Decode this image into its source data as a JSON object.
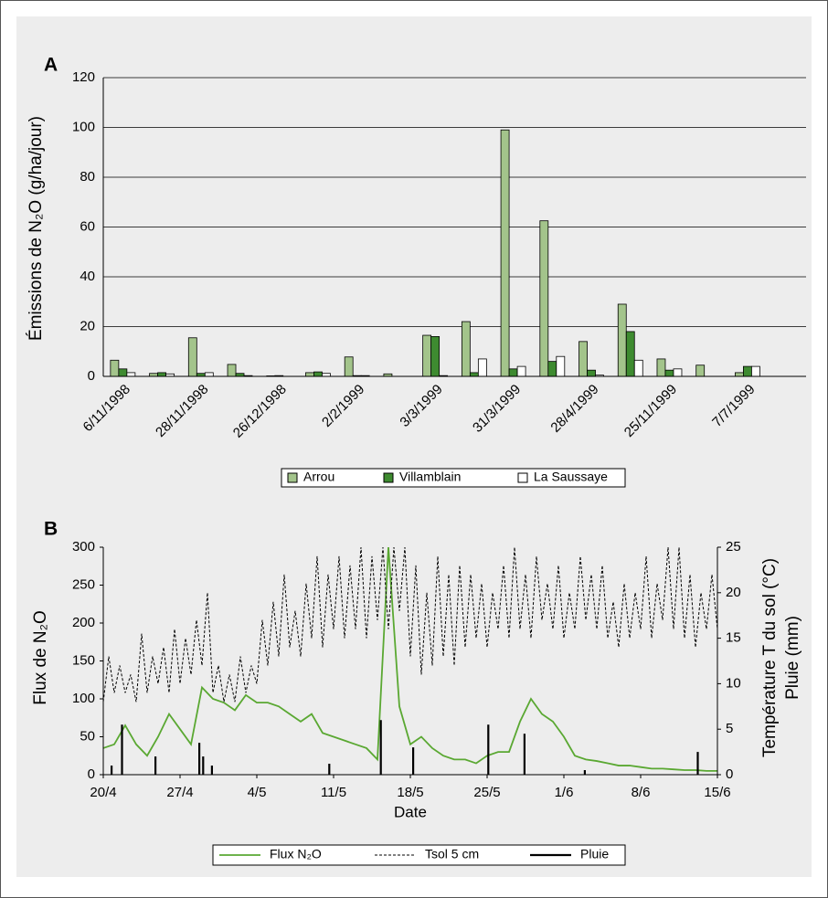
{
  "chart_data": [
    {
      "type": "bar",
      "panel_label": "A",
      "ylabel": "Émissions de N₂O (g/ha/jour)",
      "categories": [
        "6/11/1998",
        null,
        "28/11/1998",
        null,
        "26/12/1998",
        null,
        "2/2/1999",
        null,
        "3/3/1999",
        null,
        "31/3/1999",
        null,
        "28/4/1999",
        null,
        "25/11/1999",
        null,
        "7/7/1999",
        null
      ],
      "series": [
        {
          "name": "Arrou",
          "color": "#a3c48b",
          "values": [
            6.5,
            1.2,
            15.5,
            4.8,
            0.2,
            1.5,
            7.8,
            1.0,
            16.5,
            22,
            99,
            62.5,
            14,
            29,
            7,
            4.5,
            1.5,
            null
          ]
        },
        {
          "name": "Villamblain",
          "color": "#3e8b30",
          "values": [
            3,
            1.5,
            1.2,
            1.2,
            0.3,
            1.8,
            0.3,
            0,
            16,
            1.5,
            3,
            6,
            2.5,
            18,
            2.5,
            0,
            4,
            null
          ]
        },
        {
          "name": "La Saussaye",
          "color": "#ffffff",
          "values": [
            1.5,
            1.0,
            1.5,
            0.3,
            0,
            1.2,
            0.3,
            0,
            0.3,
            7,
            4,
            8,
            0.5,
            6.5,
            3,
            0,
            4,
            null
          ]
        }
      ],
      "ylim": [
        0,
        120
      ],
      "yticks": [
        0,
        20,
        40,
        60,
        80,
        100,
        120
      ],
      "grid": true
    },
    {
      "type": "line",
      "panel_label": "B",
      "xlabel": "Date",
      "ylabel": "Flux de N₂O",
      "ylabel_color": "#5aa832",
      "y2label": [
        "Température T du sol (°C)",
        "Pluie (mm)"
      ],
      "xlim": [
        0,
        56
      ],
      "xticks": [
        {
          "value": 0,
          "label": "20/4"
        },
        {
          "value": 7,
          "label": "27/4"
        },
        {
          "value": 14,
          "label": "4/5"
        },
        {
          "value": 21,
          "label": "11/5"
        },
        {
          "value": 28,
          "label": "18/5"
        },
        {
          "value": 35,
          "label": "25/5"
        },
        {
          "value": 42,
          "label": "1/6"
        },
        {
          "value": 49,
          "label": "8/6"
        },
        {
          "value": 56,
          "label": "15/6"
        }
      ],
      "ylim": [
        0,
        300
      ],
      "yticks": [
        0,
        50,
        100,
        150,
        200,
        250,
        300
      ],
      "y2lim": [
        0,
        25
      ],
      "y2ticks": [
        0,
        5,
        10,
        15,
        20,
        25
      ],
      "series": [
        {
          "name": "Flux N₂O",
          "color": "#5aa832",
          "x": [
            0,
            1,
            2,
            3,
            4,
            5,
            6,
            7,
            8,
            9,
            10,
            11,
            12,
            13,
            14,
            15,
            16,
            17,
            18,
            19,
            20,
            21,
            22,
            23,
            24,
            25,
            26,
            27,
            28,
            29,
            30,
            31,
            32,
            33,
            34,
            35,
            36,
            37,
            38,
            39,
            40,
            41,
            42,
            43,
            44,
            45,
            46,
            47,
            48,
            49,
            50,
            51,
            52,
            53,
            54,
            55,
            56
          ],
          "values": [
            35,
            40,
            65,
            40,
            25,
            50,
            80,
            60,
            40,
            115,
            100,
            95,
            85,
            105,
            95,
            95,
            90,
            80,
            70,
            80,
            55,
            50,
            45,
            40,
            35,
            20,
            300,
            90,
            40,
            50,
            35,
            25,
            20,
            20,
            15,
            25,
            30,
            30,
            70,
            100,
            80,
            70,
            50,
            25,
            20,
            18,
            15,
            12,
            12,
            10,
            8,
            8,
            7,
            6,
            6,
            5,
            5
          ]
        },
        {
          "name": "Tsol 5 cm",
          "color": "#000000",
          "axis": "y2",
          "line_style": "dashed",
          "x": [
            0,
            0.5,
            1,
            1.5,
            2,
            2.5,
            3,
            3.5,
            4,
            4.5,
            5,
            5.5,
            6,
            6.5,
            7,
            7.5,
            8,
            8.5,
            9,
            9.5,
            10,
            10.5,
            11,
            11.5,
            12,
            12.5,
            13,
            13.5,
            14,
            14.5,
            15,
            15.5,
            16,
            16.5,
            17,
            17.5,
            18,
            18.5,
            19,
            19.5,
            20,
            20.5,
            21,
            21.5,
            22,
            22.5,
            23,
            23.5,
            24,
            24.5,
            25,
            25.5,
            26,
            26.5,
            27,
            27.5,
            28,
            28.5,
            29,
            29.5,
            30,
            30.5,
            31,
            31.5,
            32,
            32.5,
            33,
            33.5,
            34,
            34.5,
            35,
            35.5,
            36,
            36.5,
            37,
            37.5,
            38,
            38.5,
            39,
            39.5,
            40,
            40.5,
            41,
            41.5,
            42,
            42.5,
            43,
            43.5,
            44,
            44.5,
            45,
            45.5,
            46,
            46.5,
            47,
            47.5,
            48,
            48.5,
            49,
            49.5,
            50,
            50.5,
            51,
            51.5,
            52,
            52.5,
            53,
            53.5,
            54,
            54.5,
            55,
            55.5,
            56
          ],
          "values": [
            8,
            13,
            9,
            12,
            9,
            11,
            8,
            15.5,
            9,
            13,
            10,
            14,
            9,
            16,
            10,
            15,
            11,
            17,
            12,
            20,
            9,
            12,
            8,
            11,
            8,
            13,
            9,
            12,
            10,
            17,
            12,
            19,
            13,
            22,
            14,
            18,
            13,
            21,
            15,
            24,
            14,
            22,
            16,
            24,
            15,
            23,
            16,
            25,
            15,
            24,
            17,
            25,
            16,
            25,
            18,
            25,
            13,
            23,
            11,
            20,
            12,
            24,
            13,
            22,
            12,
            23,
            14,
            22,
            15,
            21,
            14,
            20,
            16,
            23,
            15,
            25,
            16,
            22,
            15,
            24,
            17,
            21,
            16,
            23,
            15,
            20,
            16,
            24,
            17,
            22,
            16,
            23,
            15,
            19,
            14,
            21,
            15,
            20,
            16,
            24,
            15,
            21,
            17,
            25,
            16,
            25,
            15,
            22,
            14,
            20,
            16,
            22,
            16
          ]
        },
        {
          "name": "Pluie",
          "color": "#000000",
          "axis": "y2",
          "kind": "bar",
          "x": [
            0.75,
            1.7,
            4.75,
            8.75,
            9.1,
            9.9,
            20.6,
            25.3,
            28.25,
            35.1,
            38.4,
            43.9,
            54.2
          ],
          "values": [
            1,
            5.5,
            2,
            3.5,
            2,
            1,
            1.2,
            6,
            3,
            5.5,
            4.5,
            0.5,
            2.5
          ]
        }
      ]
    }
  ]
}
